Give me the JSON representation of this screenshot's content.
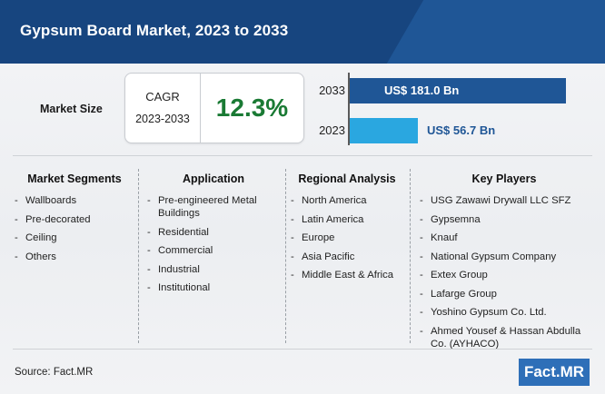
{
  "header": {
    "title": "Gypsum Board Market, 2023 to 2033"
  },
  "summary": {
    "market_size_label": "Market Size",
    "cagr_label": "CAGR",
    "cagr_period": "2023-2033",
    "cagr_value": "12.3%"
  },
  "colors": {
    "header_bg": "#17457f",
    "bar_2033": "#1f5696",
    "bar_2023": "#2aa7e0",
    "cagr_value": "#1a7a34",
    "logo_bg": "#2e6fb8"
  },
  "chart_data": {
    "type": "bar",
    "orientation": "horizontal",
    "categories": [
      "2033",
      "2023"
    ],
    "values": [
      181.0,
      56.7
    ],
    "value_labels": [
      "US$ 181.0 Bn",
      "US$ 56.7 Bn"
    ],
    "title": "",
    "xlabel": "",
    "ylabel": "",
    "grid": false
  },
  "segments": [
    {
      "heading": "Market Segments",
      "items": [
        "Wallboards",
        "Pre-decorated",
        "Ceiling",
        "Others"
      ]
    },
    {
      "heading": "Application",
      "items": [
        "Pre-engineered Metal Buildings",
        "Residential",
        "Commercial",
        "Industrial",
        "Institutional"
      ]
    },
    {
      "heading": "Regional Analysis",
      "items": [
        "North America",
        "Latin America",
        "Europe",
        "Asia Pacific",
        "Middle East & Africa"
      ]
    },
    {
      "heading": "Key Players",
      "items": [
        "USG Zawawi Drywall LLC SFZ",
        "Gypsemna",
        "Knauf",
        "National Gypsum Company",
        "Extex Group",
        "Lafarge Group",
        "Yoshino Gypsum Co. Ltd.",
        "Ahmed Yousef & Hassan Abdulla Co. (AYHACO)"
      ]
    }
  ],
  "footer": {
    "source": "Source: Fact.MR",
    "logo_text": "Fact.MR"
  }
}
